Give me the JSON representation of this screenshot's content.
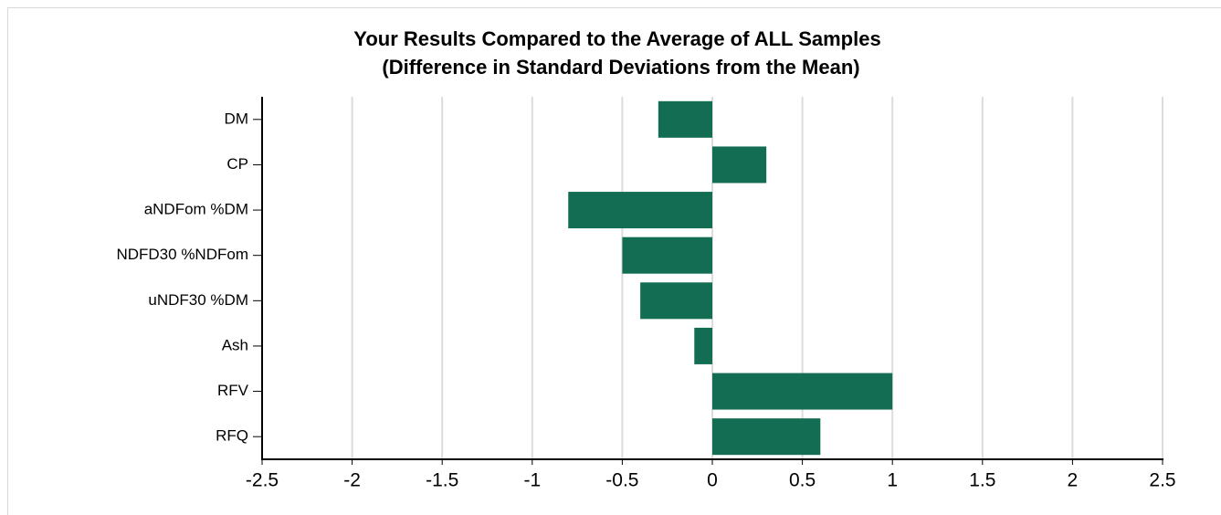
{
  "chart_data": {
    "type": "hbar",
    "title": "Your Results Compared to the Average of ALL Samples",
    "subtitle": "(Difference in Standard Deviations from the Mean)",
    "categories": [
      "DM",
      "CP",
      "aNDFom %DM",
      "NDFD30 %NDFom",
      "uNDF30 %DM",
      "Ash",
      "RFV",
      "RFQ"
    ],
    "values": [
      -0.3,
      0.3,
      -0.8,
      -0.5,
      -0.4,
      -0.1,
      1.0,
      0.6
    ],
    "color": "#136d53",
    "xlim": [
      -2.5,
      2.5
    ],
    "xticks": [
      -2.5,
      -2,
      -1.5,
      -1,
      -0.5,
      0,
      0.5,
      1,
      1.5,
      2,
      2.5
    ],
    "grid": true
  }
}
